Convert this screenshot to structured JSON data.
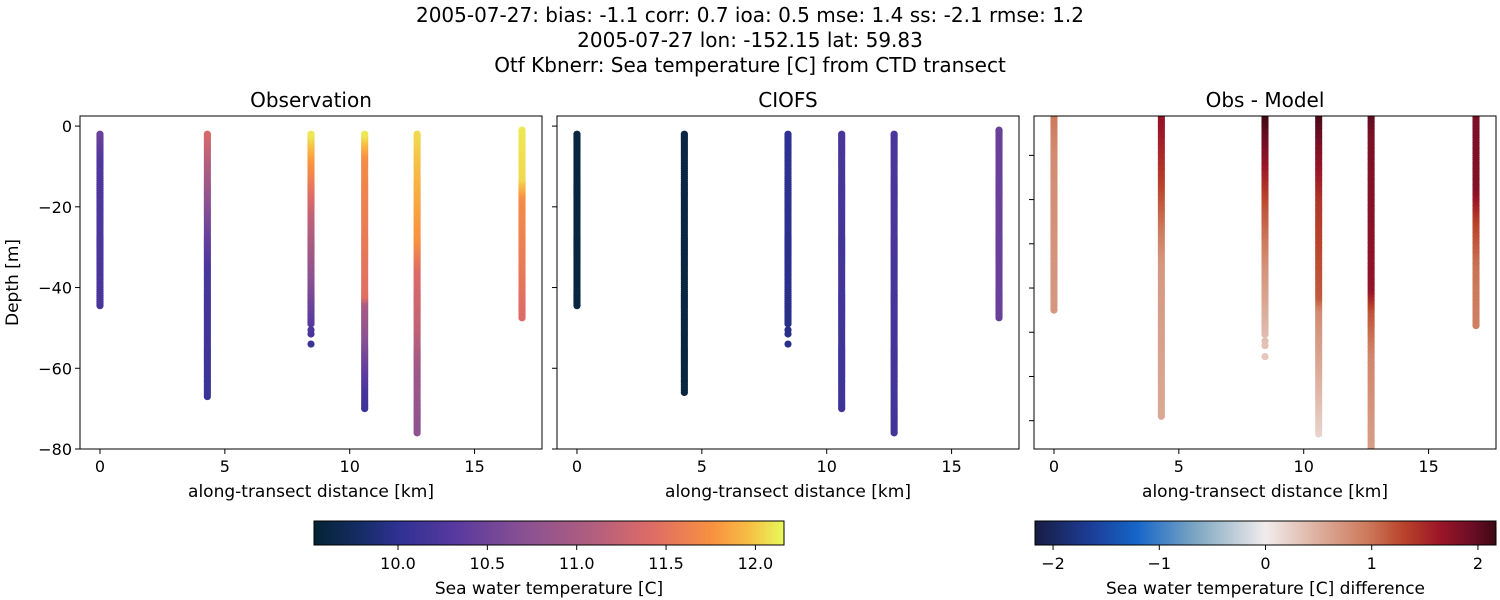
{
  "titles": [
    "2005-07-27: bias: -1.1  corr: 0.7  ioa: 0.5  mse: 1.4  ss: -2.1  rmse: 1.2",
    "2005-07-27 lon: -152.15 lat: 59.83",
    "Otf Kbnerr: Sea temperature [C] from CTD transect"
  ],
  "chart_data": [
    {
      "type": "scatter",
      "title": "Observation",
      "xlabel": "along-transect distance [km]",
      "ylabel": "Depth [m]",
      "xlim": [
        -0.8,
        17.7
      ],
      "ylim": [
        -80,
        2.5
      ],
      "xticks": [
        0,
        5,
        10,
        15
      ],
      "yticks": [
        0,
        -20,
        -40,
        -60,
        -80
      ],
      "colormap": "thermal",
      "clim": [
        9.53,
        12.16
      ],
      "profiles": [
        {
          "x": 0,
          "extra_depths": [],
          "profile": [
            [
              -2,
              10.45
            ],
            [
              -8,
              10.25
            ],
            [
              -44.5,
              10.2
            ]
          ]
        },
        {
          "x": 4.3,
          "extra_depths": [],
          "profile": [
            [
              -2,
              11.35
            ],
            [
              -15,
              10.85
            ],
            [
              -25,
              10.5
            ],
            [
              -35,
              10.2
            ],
            [
              -67,
              10.1
            ]
          ]
        },
        {
          "x": 8.45,
          "extra_depths": [
            -50.5,
            -51.5,
            -54
          ],
          "profile": [
            [
              -2,
              12.1
            ],
            [
              -8,
              11.8
            ],
            [
              -14,
              11.55
            ],
            [
              -22,
              11.2
            ],
            [
              -35,
              10.8
            ],
            [
              -49,
              10.3
            ],
            [
              -54,
              10.1
            ]
          ]
        },
        {
          "x": 10.6,
          "extra_depths": [],
          "profile": [
            [
              -2,
              12.1
            ],
            [
              -8,
              11.7
            ],
            [
              -42,
              11.45
            ],
            [
              -44,
              11.0
            ],
            [
              -55,
              10.6
            ],
            [
              -65,
              10.2
            ],
            [
              -70,
              10.1
            ]
          ]
        },
        {
          "x": 12.7,
          "extra_depths": [],
          "profile": [
            [
              -2,
              12.05
            ],
            [
              -28,
              11.75
            ],
            [
              -36,
              11.4
            ],
            [
              -50,
              11.2
            ],
            [
              -60,
              10.9
            ],
            [
              -76,
              10.75
            ]
          ]
        },
        {
          "x": 16.9,
          "extra_depths": [],
          "profile": [
            [
              -1,
              12.1
            ],
            [
              -13,
              12.05
            ],
            [
              -18,
              11.7
            ],
            [
              -35,
              11.55
            ],
            [
              -47.5,
              11.4
            ]
          ]
        }
      ]
    },
    {
      "type": "scatter",
      "title": "CIOFS",
      "xlabel": "along-transect distance [km]",
      "xlim": [
        -0.8,
        17.7
      ],
      "ylim": [
        -80,
        2.5
      ],
      "xticks": [
        0,
        5,
        10,
        15
      ],
      "yticks": [
        0,
        -20,
        -40,
        -60,
        -80
      ],
      "colormap": "thermal",
      "clim": [
        9.53,
        12.16
      ],
      "profiles": [
        {
          "x": 0,
          "extra_depths": [],
          "profile": [
            [
              -2,
              9.6
            ],
            [
              -44.5,
              9.6
            ]
          ]
        },
        {
          "x": 4.3,
          "extra_depths": [],
          "profile": [
            [
              -2,
              9.62
            ],
            [
              -66,
              9.6
            ]
          ]
        },
        {
          "x": 8.45,
          "extra_depths": [
            -50.5,
            -51.5,
            -54
          ],
          "profile": [
            [
              -2,
              10.0
            ],
            [
              -54,
              9.95
            ]
          ]
        },
        {
          "x": 10.6,
          "extra_depths": [],
          "profile": [
            [
              -2,
              10.2
            ],
            [
              -70,
              10.12
            ]
          ]
        },
        {
          "x": 12.7,
          "extra_depths": [],
          "profile": [
            [
              -2,
              10.22
            ],
            [
              -76,
              10.15
            ]
          ]
        },
        {
          "x": 16.9,
          "extra_depths": [],
          "profile": [
            [
              -1,
              10.45
            ],
            [
              -47.5,
              10.45
            ]
          ]
        }
      ]
    },
    {
      "type": "scatter",
      "title": "Obs - Model",
      "xlabel": "along-transect distance [km]",
      "xlim": [
        -0.8,
        17.7
      ],
      "ylim": [
        -76.4,
        -1.1
      ],
      "xticks": [
        0,
        5,
        10,
        15
      ],
      "yticks": [
        -10,
        -20,
        -30,
        -40,
        -50,
        -60,
        -70
      ],
      "ytick_labels_shown": false,
      "colormap": "balance",
      "clim": [
        -2.17,
        2.17
      ],
      "profiles": [
        {
          "x": 0,
          "extra_depths": [],
          "profile": [
            [
              -1,
              0.95
            ],
            [
              -10,
              0.8
            ],
            [
              -45,
              0.7
            ]
          ]
        },
        {
          "x": 4.3,
          "extra_depths": [],
          "profile": [
            [
              -1,
              1.7
            ],
            [
              -15,
              1.35
            ],
            [
              -25,
              1.0
            ],
            [
              -34,
              0.7
            ],
            [
              -69,
              0.55
            ]
          ]
        },
        {
          "x": 8.45,
          "extra_depths": [
            -52,
            -53,
            -55.5
          ],
          "profile": [
            [
              -1,
              2.15
            ],
            [
              -10,
              1.75
            ],
            [
              -20,
              1.25
            ],
            [
              -35,
              0.75
            ],
            [
              -48,
              0.45
            ],
            [
              -55.5,
              0.3
            ]
          ]
        },
        {
          "x": 10.6,
          "extra_depths": [],
          "profile": [
            [
              -1,
              2.1
            ],
            [
              -10,
              1.75
            ],
            [
              -20,
              1.4
            ],
            [
              -42,
              1.15
            ],
            [
              -45,
              0.8
            ],
            [
              -60,
              0.5
            ],
            [
              -73,
              0.2
            ]
          ]
        },
        {
          "x": 12.7,
          "extra_depths": [],
          "profile": [
            [
              -1,
              2.0
            ],
            [
              -5,
              1.85
            ],
            [
              -40,
              1.7
            ],
            [
              -45,
              1.2
            ],
            [
              -55,
              0.85
            ],
            [
              -80,
              0.6
            ]
          ]
        },
        {
          "x": 16.9,
          "extra_depths": [],
          "profile": [
            [
              -1,
              1.85
            ],
            [
              -17,
              1.8
            ],
            [
              -25,
              1.3
            ],
            [
              -35,
              1.0
            ],
            [
              -48.5,
              0.9
            ]
          ]
        }
      ]
    }
  ],
  "colorbars": [
    {
      "label": "Sea water temperature [C]",
      "colormap": "thermal",
      "range": [
        9.53,
        12.16
      ],
      "ticks": [
        "10.0",
        "10.5",
        "11.0",
        "11.5",
        "12.0"
      ]
    },
    {
      "label": "Sea water temperature [C] difference",
      "colormap": "balance",
      "range": [
        -2.17,
        2.17
      ],
      "ticks": [
        "−2",
        "−1",
        "0",
        "1",
        "2"
      ]
    }
  ],
  "colormaps": {
    "thermal": [
      [
        0,
        "#042333"
      ],
      [
        0.1,
        "#152d66"
      ],
      [
        0.18,
        "#2f3193"
      ],
      [
        0.3,
        "#58399f"
      ],
      [
        0.45,
        "#8a5192"
      ],
      [
        0.6,
        "#b45f7d"
      ],
      [
        0.72,
        "#de6c66"
      ],
      [
        0.85,
        "#f99240"
      ],
      [
        0.93,
        "#f6c145"
      ],
      [
        1,
        "#e8fa5b"
      ]
    ],
    "balance": [
      [
        0,
        "#181c43"
      ],
      [
        0.12,
        "#1c3d96"
      ],
      [
        0.22,
        "#1565c8"
      ],
      [
        0.35,
        "#7ea7c2"
      ],
      [
        0.5,
        "#f1ecec"
      ],
      [
        0.62,
        "#dcac9a"
      ],
      [
        0.72,
        "#cd7a5c"
      ],
      [
        0.8,
        "#b9432a"
      ],
      [
        0.88,
        "#9a1528"
      ],
      [
        0.95,
        "#6a0d25"
      ],
      [
        1,
        "#3c0912"
      ]
    ]
  }
}
